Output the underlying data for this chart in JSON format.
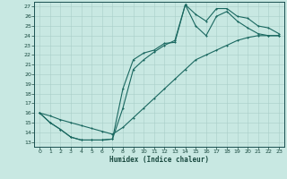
{
  "xlabel": "Humidex (Indice chaleur)",
  "bg_color": "#c8e8e2",
  "grid_color": "#a8cec8",
  "line_color": "#1a6860",
  "xlim": [
    -0.5,
    23.5
  ],
  "ylim": [
    12.5,
    27.5
  ],
  "xticks": [
    0,
    1,
    2,
    3,
    4,
    5,
    6,
    7,
    8,
    9,
    10,
    11,
    12,
    13,
    14,
    15,
    16,
    17,
    18,
    19,
    20,
    21,
    22,
    23
  ],
  "yticks": [
    13,
    14,
    15,
    16,
    17,
    18,
    19,
    20,
    21,
    22,
    23,
    24,
    25,
    26,
    27
  ],
  "curve1_x": [
    0,
    1,
    2,
    3,
    4,
    5,
    6,
    7,
    8,
    9,
    10,
    11,
    12,
    13,
    14,
    15,
    16,
    17,
    18,
    19,
    20,
    21,
    22,
    23
  ],
  "curve1_y": [
    16,
    15,
    14.3,
    13.5,
    13.2,
    13.2,
    13.2,
    13.3,
    18.5,
    21.5,
    22.2,
    22.5,
    23.2,
    23.3,
    27.2,
    26.2,
    25.5,
    26.8,
    26.8,
    26.0,
    25.8,
    25.0,
    24.8,
    24.2
  ],
  "curve2_x": [
    0,
    1,
    2,
    3,
    4,
    5,
    6,
    7,
    8,
    9,
    10,
    11,
    12,
    13,
    14,
    15,
    16,
    17,
    18,
    19,
    20,
    21,
    22,
    23
  ],
  "curve2_y": [
    16,
    15,
    14.3,
    13.5,
    13.2,
    13.2,
    13.2,
    13.3,
    16.5,
    20.5,
    21.5,
    22.3,
    23.0,
    23.5,
    27.2,
    25.0,
    24.0,
    26.0,
    26.5,
    25.5,
    24.8,
    24.2,
    24.0,
    24.0
  ],
  "curve3_x": [
    0,
    1,
    2,
    3,
    4,
    5,
    6,
    7,
    8,
    9,
    10,
    11,
    12,
    13,
    14,
    15,
    16,
    17,
    18,
    19,
    20,
    21,
    22,
    23
  ],
  "curve3_y": [
    16,
    15.7,
    15.3,
    15.0,
    14.7,
    14.4,
    14.1,
    13.8,
    14.5,
    15.5,
    16.5,
    17.5,
    18.5,
    19.5,
    20.5,
    21.5,
    22.0,
    22.5,
    23.0,
    23.5,
    23.8,
    24.0,
    24.0,
    24.0
  ]
}
